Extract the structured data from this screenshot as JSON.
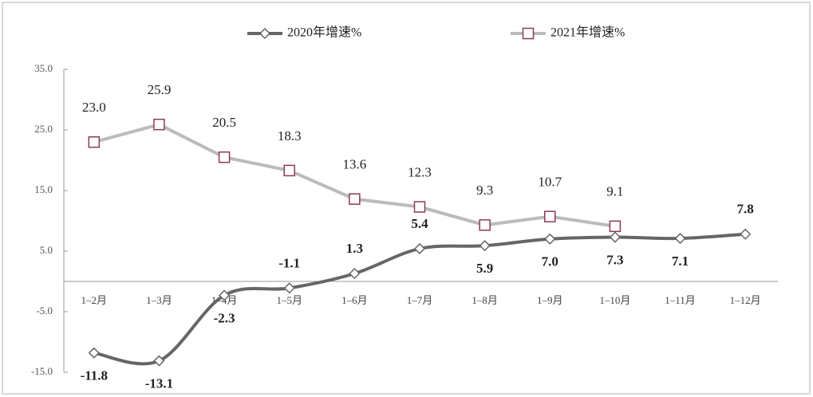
{
  "chart_data": {
    "type": "line",
    "categories": [
      "1–2月",
      "1–3月",
      "1–4月",
      "1–5月",
      "1–6月",
      "1–7月",
      "1–8月",
      "1–9月",
      "1–10月",
      "1–11月",
      "1–12月"
    ],
    "series": [
      {
        "name": "2020年增速%",
        "color": "#666666",
        "marker": "diamond",
        "values": [
          -11.8,
          -13.1,
          -2.3,
          -1.1,
          1.3,
          5.4,
          5.9,
          7.0,
          7.3,
          7.1,
          7.8
        ],
        "value_labels": [
          "-11.8",
          "-13.1",
          "-2.3",
          "-1.1",
          "1.3",
          "5.4",
          "5.9",
          "7.0",
          "7.3",
          "7.1",
          "7.8"
        ]
      },
      {
        "name": "2021年增速%",
        "color": "#bbbbbb",
        "marker": "square",
        "marker_color": "#8b3a5a",
        "values": [
          23.0,
          25.9,
          20.5,
          18.3,
          13.6,
          12.3,
          9.3,
          10.7,
          9.1,
          null,
          null
        ],
        "value_labels": [
          "23.0",
          "25.9",
          "20.5",
          "18.3",
          "13.6",
          "12.3",
          "9.3",
          "10.7",
          "9.1",
          null,
          null
        ]
      }
    ],
    "ylim": [
      -15,
      35
    ],
    "yticks": [
      {
        "value": 35,
        "label": "35.0"
      },
      {
        "value": 25,
        "label": "25.0"
      },
      {
        "value": 15,
        "label": "15.0"
      },
      {
        "value": 5,
        "label": "5.0"
      },
      {
        "value": -5,
        "label": "-5.0"
      },
      {
        "value": -15,
        "label": "-15.0"
      }
    ],
    "legend": "top"
  }
}
